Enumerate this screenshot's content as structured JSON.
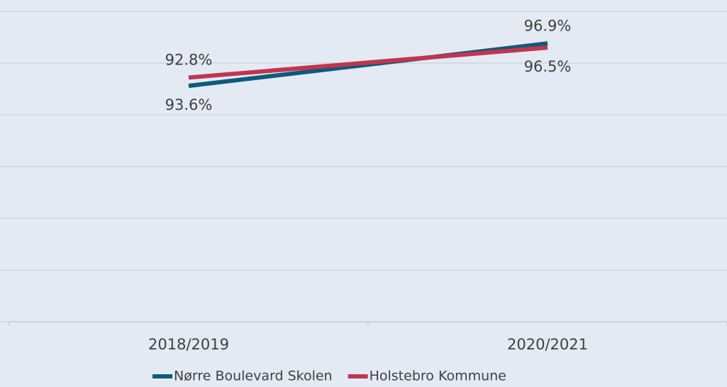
{
  "chart_data": {
    "type": "line",
    "categories": [
      "2018/2019",
      "2020/2021"
    ],
    "series": [
      {
        "name": "Nørre Boulevard Skolen",
        "color": "#0e5a7c",
        "values": [
          92.8,
          96.9
        ],
        "value_labels": [
          "92.8%",
          "96.9%"
        ]
      },
      {
        "name": "Holstebro Kommune",
        "color": "#c0354f",
        "values": [
          93.6,
          96.5
        ],
        "value_labels": [
          "93.6%",
          "96.5%"
        ]
      }
    ],
    "ylim": [
      70,
      100
    ],
    "yticks": [
      70,
      75,
      80,
      85,
      90,
      95,
      100
    ],
    "grid": true,
    "legend": "bottom"
  }
}
